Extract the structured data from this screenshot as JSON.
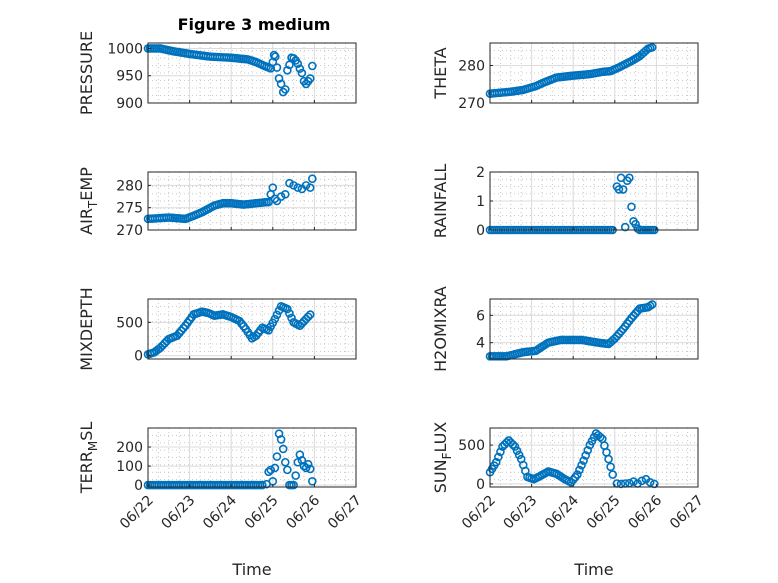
{
  "figure": {
    "title": "Figure 3 medium",
    "xlabel": "Time",
    "marker_color": "#0072bd",
    "axis_color": "#262626"
  },
  "chart_data": [
    {
      "id": "pressure",
      "type": "scatter",
      "ylabel": "PRESSURE",
      "sub": null,
      "xlim": [
        0,
        5
      ],
      "ylim": [
        900,
        1010
      ],
      "yticks": [
        900,
        950,
        1000
      ],
      "ytick_labels": [
        "900",
        "950",
        "1000"
      ],
      "xticks": [
        0,
        1,
        2,
        3,
        4,
        5
      ],
      "xtick_labels": [
        "06/22",
        "06/23",
        "06/24",
        "06/25",
        "06/26",
        "06/27"
      ],
      "show_xtick_labels": false,
      "grid": true,
      "minor_grid": true,
      "dense_line": {
        "x": [
          0,
          0.3,
          0.6,
          1.0,
          1.5,
          2.0,
          2.4,
          2.6,
          2.8,
          2.9,
          3.0
        ],
        "y": [
          1000,
          1000,
          995,
          990,
          985,
          983,
          980,
          975,
          968,
          965,
          962
        ]
      },
      "points": {
        "x": [
          3.0,
          3.03,
          3.06,
          3.1,
          3.15,
          3.2,
          3.25,
          3.3,
          3.35,
          3.4,
          3.45,
          3.5,
          3.55,
          3.6,
          3.65,
          3.7,
          3.75,
          3.8,
          3.85,
          3.9,
          3.95
        ],
        "y": [
          975,
          988,
          985,
          965,
          945,
          935,
          920,
          925,
          960,
          970,
          983,
          982,
          978,
          972,
          963,
          955,
          940,
          935,
          940,
          945,
          968
        ]
      }
    },
    {
      "id": "theta",
      "type": "scatter",
      "ylabel": "THETA",
      "sub": null,
      "xlim": [
        0,
        5
      ],
      "ylim": [
        270,
        286
      ],
      "yticks": [
        270,
        280
      ],
      "ytick_labels": [
        "270",
        "280"
      ],
      "xticks": [
        0,
        1,
        2,
        3,
        4,
        5
      ],
      "xtick_labels": [
        "06/22",
        "06/23",
        "06/24",
        "06/25",
        "06/26",
        "06/27"
      ],
      "show_xtick_labels": false,
      "grid": true,
      "minor_grid": true,
      "dense_line": {
        "x": [
          0,
          0.5,
          0.8,
          1.1,
          1.3,
          1.6,
          2.0,
          2.4,
          2.7,
          2.9,
          3.1,
          3.4,
          3.6,
          3.8,
          3.95
        ],
        "y": [
          272.5,
          273,
          273.5,
          274.5,
          275.5,
          276.8,
          277.3,
          277.7,
          278.3,
          278.5,
          279.5,
          281.2,
          282.5,
          284.5,
          285
        ]
      },
      "points": {
        "x": [],
        "y": []
      }
    },
    {
      "id": "air_temp",
      "type": "scatter",
      "ylabel": "AIR",
      "sub": "T",
      "ylabel_tail": "EMP",
      "xlim": [
        0,
        5
      ],
      "ylim": [
        270,
        283
      ],
      "yticks": [
        270,
        275,
        280
      ],
      "ytick_labels": [
        "270",
        "275",
        "280"
      ],
      "xticks": [
        0,
        1,
        2,
        3,
        4,
        5
      ],
      "xtick_labels": [
        "06/22",
        "06/23",
        "06/24",
        "06/25",
        "06/26",
        "06/27"
      ],
      "show_xtick_labels": false,
      "grid": true,
      "minor_grid": true,
      "dense_line": {
        "x": [
          0,
          0.5,
          0.9,
          1.1,
          1.3,
          1.6,
          1.8,
          2.0,
          2.3,
          2.6,
          2.8,
          2.95
        ],
        "y": [
          272.5,
          272.8,
          272.5,
          273.2,
          274,
          275.5,
          276,
          276,
          275.7,
          276,
          276.2,
          276.3
        ]
      },
      "points": {
        "x": [
          2.95,
          3.0,
          3.05,
          3.1,
          3.2,
          3.3,
          3.4,
          3.5,
          3.6,
          3.7,
          3.8,
          3.9,
          3.95
        ],
        "y": [
          278,
          279.5,
          277,
          276.5,
          277.5,
          278,
          280.5,
          280,
          279.5,
          279.2,
          280,
          279.5,
          281.5
        ]
      }
    },
    {
      "id": "rainfall",
      "type": "scatter",
      "ylabel": "RAINFALL",
      "sub": null,
      "xlim": [
        0,
        5
      ],
      "ylim": [
        0,
        2
      ],
      "yticks": [
        0,
        1,
        2
      ],
      "ytick_labels": [
        "0",
        "1",
        "2"
      ],
      "xticks": [
        0,
        1,
        2,
        3,
        4,
        5
      ],
      "xtick_labels": [
        "06/22",
        "06/23",
        "06/24",
        "06/25",
        "06/26",
        "06/27"
      ],
      "show_xtick_labels": false,
      "grid": true,
      "minor_grid": true,
      "dense_line": {
        "x": [
          0,
          3.0
        ],
        "y": [
          0,
          0
        ]
      },
      "points": {
        "x": [
          3.05,
          3.1,
          3.15,
          3.2,
          3.25,
          3.3,
          3.35,
          3.4,
          3.45,
          3.5,
          3.55,
          3.6,
          3.65,
          3.7,
          3.75,
          3.8,
          3.85,
          3.9,
          3.95
        ],
        "y": [
          1.5,
          1.4,
          1.8,
          1.4,
          0.1,
          1.7,
          1.8,
          0.8,
          0.3,
          0.2,
          0.05,
          0,
          0,
          0,
          0,
          0,
          0,
          0,
          0
        ]
      }
    },
    {
      "id": "mixdepth",
      "type": "scatter",
      "ylabel": "MIXDEPTH",
      "sub": null,
      "xlim": [
        0,
        5
      ],
      "ylim": [
        -50,
        850
      ],
      "yticks": [
        0,
        500
      ],
      "ytick_labels": [
        "0",
        "500"
      ],
      "xticks": [
        0,
        1,
        2,
        3,
        4,
        5
      ],
      "xtick_labels": [
        "06/22",
        "06/23",
        "06/24",
        "06/25",
        "06/26",
        "06/27"
      ],
      "show_xtick_labels": false,
      "grid": true,
      "minor_grid": true,
      "dense_line": {
        "x": [
          0,
          0.15,
          0.3,
          0.5,
          0.7,
          0.9,
          1.1,
          1.3,
          1.45,
          1.6,
          1.8,
          2.0,
          2.2,
          2.35,
          2.5,
          2.6,
          2.75,
          2.9,
          3.05,
          3.2,
          3.35,
          3.5,
          3.65,
          3.8,
          3.95
        ],
        "y": [
          20,
          50,
          120,
          250,
          300,
          450,
          620,
          660,
          640,
          600,
          620,
          580,
          520,
          400,
          260,
          300,
          420,
          380,
          550,
          740,
          700,
          500,
          450,
          550,
          650
        ]
      },
      "points": {
        "x": [],
        "y": []
      }
    },
    {
      "id": "h2omixra",
      "type": "scatter",
      "ylabel": "H2OMIXRA",
      "sub": null,
      "xlim": [
        0,
        5
      ],
      "ylim": [
        2.8,
        7.2
      ],
      "yticks": [
        4,
        6
      ],
      "ytick_labels": [
        "4",
        "6"
      ],
      "xticks": [
        0,
        1,
        2,
        3,
        4,
        5
      ],
      "xtick_labels": [
        "06/22",
        "06/23",
        "06/24",
        "06/25",
        "06/26",
        "06/27"
      ],
      "show_xtick_labels": false,
      "grid": true,
      "minor_grid": true,
      "dense_line": {
        "x": [
          0,
          0.4,
          0.8,
          1.1,
          1.4,
          1.7,
          1.9,
          2.2,
          2.6,
          2.85,
          3.0,
          3.2,
          3.4,
          3.6,
          3.8,
          3.95
        ],
        "y": [
          3,
          3,
          3.3,
          3.4,
          4,
          4.2,
          4.2,
          4.2,
          4,
          3.9,
          4.3,
          5,
          5.8,
          6.5,
          6.6,
          6.9
        ]
      },
      "points": {
        "x": [],
        "y": []
      }
    },
    {
      "id": "terr_msl",
      "type": "scatter",
      "ylabel": "TERR",
      "sub": "M",
      "ylabel_tail": "SL",
      "xlim": [
        0,
        5
      ],
      "ylim": [
        -10,
        300
      ],
      "yticks": [
        0,
        100,
        200
      ],
      "ytick_labels": [
        "0",
        "100",
        "200"
      ],
      "xticks": [
        0,
        1,
        2,
        3,
        4,
        5
      ],
      "xtick_labels": [
        "06/22",
        "06/23",
        "06/24",
        "06/25",
        "06/26",
        "06/27"
      ],
      "show_xtick_labels": true,
      "grid": true,
      "minor_grid": true,
      "dense_line": {
        "x": [
          0,
          2.8
        ],
        "y": [
          0,
          0
        ]
      },
      "points": {
        "x": [
          2.85,
          2.9,
          2.95,
          3.0,
          3.05,
          3.1,
          3.15,
          3.2,
          3.25,
          3.3,
          3.35,
          3.4,
          3.45,
          3.5,
          3.55,
          3.6,
          3.65,
          3.7,
          3.75,
          3.8,
          3.85,
          3.9,
          3.95
        ],
        "y": [
          5,
          70,
          80,
          20,
          90,
          150,
          270,
          240,
          190,
          120,
          80,
          0,
          0,
          0,
          50,
          120,
          160,
          130,
          100,
          90,
          110,
          85,
          20
        ]
      }
    },
    {
      "id": "sunflux",
      "type": "scatter",
      "ylabel": "SUN",
      "sub": "F",
      "ylabel_tail": "LUX",
      "xlim": [
        0,
        5
      ],
      "ylim": [
        -40,
        720
      ],
      "yticks": [
        0,
        500
      ],
      "ytick_labels": [
        "0",
        "500"
      ],
      "xticks": [
        0,
        1,
        2,
        3,
        4,
        5
      ],
      "xtick_labels": [
        "06/22",
        "06/23",
        "06/24",
        "06/25",
        "06/26",
        "06/27"
      ],
      "show_xtick_labels": true,
      "grid": true,
      "minor_grid": true,
      "dense_line": {
        "x": [
          0,
          0.15,
          0.3,
          0.45,
          0.6,
          0.75,
          0.9,
          1.05,
          1.2,
          1.4,
          1.6,
          1.8,
          1.95,
          2.1,
          2.25,
          2.4,
          2.55,
          2.7,
          2.85,
          3.0
        ],
        "y": [
          150,
          280,
          480,
          560,
          480,
          320,
          90,
          60,
          100,
          160,
          130,
          60,
          20,
          120,
          300,
          500,
          650,
          580,
          320,
          20
        ]
      },
      "points": {
        "x": [
          3.05,
          3.15,
          3.25,
          3.35,
          3.45,
          3.55,
          3.65,
          3.75,
          3.85,
          3.95
        ],
        "y": [
          5,
          0,
          5,
          10,
          30,
          5,
          40,
          60,
          20,
          0
        ]
      }
    }
  ]
}
